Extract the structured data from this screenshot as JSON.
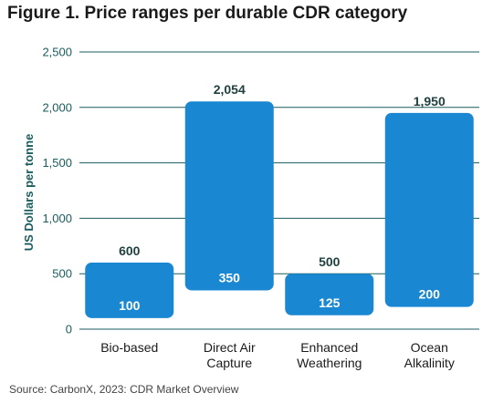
{
  "figure": {
    "title": "Figure 1. Price ranges per durable CDR category",
    "source": "Source: CarbonX, 2023: CDR Market Overview"
  },
  "colors": {
    "bar": "#1a87d2",
    "axis_text": "#1a5c5c",
    "label_text": "#1f3f3f",
    "grid": "#1a5c5c",
    "value_max_text": "#1f3f3f",
    "value_min_text": "#ffffff"
  },
  "chart_data": {
    "type": "bar",
    "subtype": "floating-range",
    "title": "",
    "ylabel": "US Dollars per tonne",
    "xlabel": "",
    "ylim": [
      0,
      2500
    ],
    "yticks": [
      0,
      500,
      1000,
      1500,
      2000,
      2500
    ],
    "ytick_labels": [
      "0",
      "500",
      "1,000",
      "1,500",
      "2,000",
      "2,500"
    ],
    "grid": true,
    "legend": "none",
    "categories": [
      [
        "Bio-based"
      ],
      [
        "Direct Air",
        "Capture"
      ],
      [
        "Enhanced",
        "Weathering"
      ],
      [
        "Ocean",
        "Alkalinity"
      ]
    ],
    "min_values": [
      100,
      350,
      125,
      200
    ],
    "max_values": [
      600,
      2054,
      500,
      1950
    ],
    "min_labels": [
      "100",
      "350",
      "125",
      "200"
    ],
    "max_labels": [
      "600",
      "2,054",
      "500",
      "1,950"
    ]
  }
}
